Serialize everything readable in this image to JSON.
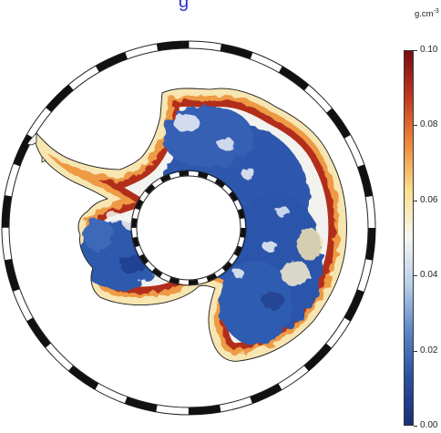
{
  "title_fragment": "g",
  "unit": {
    "base": "g.cm",
    "exponent": "-3"
  },
  "colorbar": {
    "min": 0.0,
    "max": 0.1,
    "ticks": [
      "0.10",
      "0.08",
      "0.06",
      "0.04",
      "0.02",
      "0.00"
    ],
    "colors": [
      "#7a0c13",
      "#c23a20",
      "#ef8a3b",
      "#fbe08f",
      "#f6f6f4",
      "#b8cfe8",
      "#5b86c6",
      "#2b4f9e",
      "#1a2f78"
    ]
  },
  "map": {
    "projection": "south-polar-stereographic",
    "colors": {
      "low": "#2a53a6",
      "mid_low": "#4e78c0",
      "mid": "#f4f4ee",
      "mid_high": "#f7cf74",
      "high": "#d9531e",
      "max": "#8f1915"
    }
  }
}
